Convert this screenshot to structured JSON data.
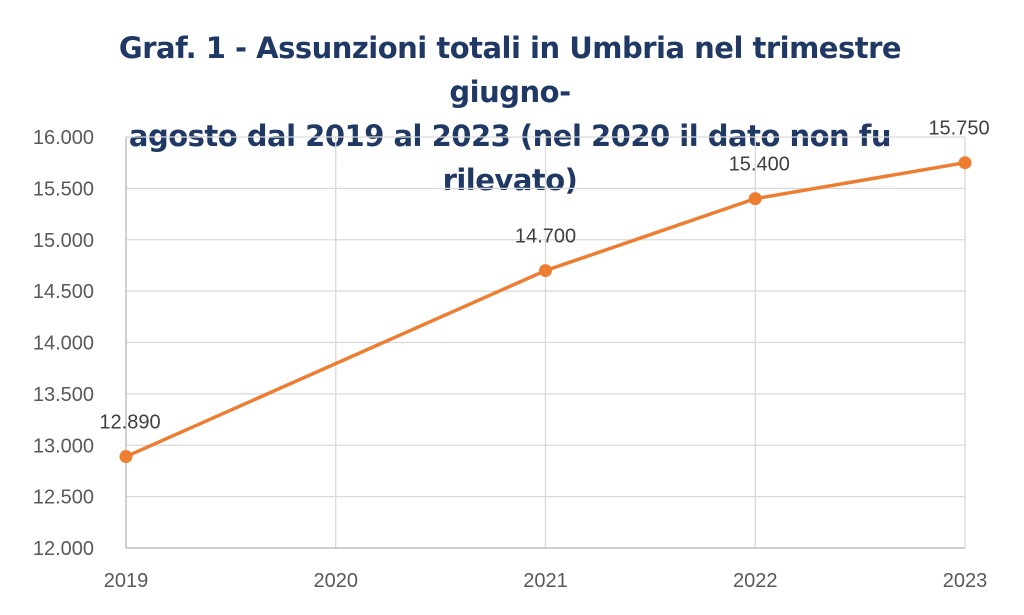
{
  "colors": {
    "title": "#1f3864",
    "series": "#ed7d31",
    "grid": "#d9d9d9",
    "axis": "#bfbfbf",
    "tick_text": "#595959",
    "label_text": "#404040"
  },
  "chart_data": {
    "type": "line",
    "title": "Graf. 1 - Assunzioni totali in Umbria nel trimestre giugno-agosto dal 2019 al 2023 (nel 2020 il dato non fu rilevato)",
    "title_lines": [
      "Graf. 1 - Assunzioni totali in Umbria nel trimestre giugno-",
      "agosto dal 2019 al 2023 (nel 2020 il dato non fu rilevato)"
    ],
    "categories": [
      "2019",
      "2020",
      "2021",
      "2022",
      "2023"
    ],
    "series": [
      {
        "values": [
          12890,
          null,
          14700,
          15400,
          15750
        ]
      }
    ],
    "data_labels": [
      "12.890",
      "",
      "14.700",
      "15.400",
      "15.750"
    ],
    "ylim": [
      12000,
      16000
    ],
    "y_ticks": [
      12000,
      12500,
      13000,
      13500,
      14000,
      14500,
      15000,
      15500,
      16000
    ],
    "y_tick_labels": [
      "12.000",
      "12.500",
      "13.000",
      "13.500",
      "14.000",
      "14.500",
      "15.000",
      "15.500",
      "16.000"
    ],
    "grid": true,
    "legend": "none"
  }
}
